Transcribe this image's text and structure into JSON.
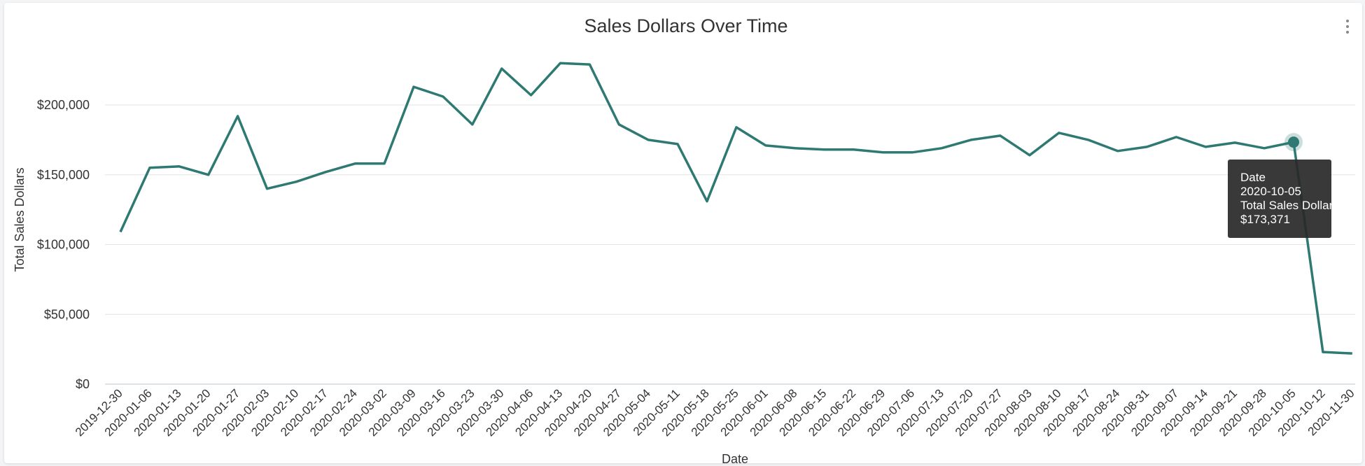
{
  "chart_data": {
    "type": "line",
    "title": "Sales Dollars Over Time",
    "xlabel": "Date",
    "ylabel": "Total Sales Dollars",
    "ylim": [
      0,
      200000
    ],
    "yticks": [
      "$0",
      "$50,000",
      "$100,000",
      "$150,000",
      "$200,000"
    ],
    "ytick_values": [
      0,
      50000,
      100000,
      150000,
      200000
    ],
    "grid": true,
    "line_color": "#2e7a72",
    "categories": [
      "2019-12-30",
      "2020-01-06",
      "2020-01-13",
      "2020-01-20",
      "2020-01-27",
      "2020-02-03",
      "2020-02-10",
      "2020-02-17",
      "2020-02-24",
      "2020-03-02",
      "2020-03-09",
      "2020-03-16",
      "2020-03-23",
      "2020-03-30",
      "2020-04-06",
      "2020-04-13",
      "2020-04-20",
      "2020-04-27",
      "2020-05-04",
      "2020-05-11",
      "2020-05-18",
      "2020-05-25",
      "2020-06-01",
      "2020-06-08",
      "2020-06-15",
      "2020-06-22",
      "2020-06-29",
      "2020-07-06",
      "2020-07-13",
      "2020-07-20",
      "2020-07-27",
      "2020-08-03",
      "2020-08-10",
      "2020-08-17",
      "2020-08-24",
      "2020-08-31",
      "2020-09-07",
      "2020-09-14",
      "2020-09-21",
      "2020-09-28",
      "2020-10-05",
      "2020-10-12",
      "2020-11-30"
    ],
    "series": [
      {
        "values": [
          109000,
          155000,
          156000,
          150000,
          192000,
          140000,
          145000,
          152000,
          158000,
          158000,
          213000,
          206000,
          186000,
          226000,
          207000,
          230000,
          229000,
          186000,
          175000,
          172000,
          131000,
          184000,
          171000,
          169000,
          168000,
          168000,
          166000,
          166000,
          169000,
          175000,
          178000,
          164000,
          180000,
          175000,
          167000,
          170000,
          177000,
          170000,
          173000,
          169000,
          173371,
          23000,
          22000
        ]
      }
    ],
    "tooltip": {
      "x_label": "Date",
      "x_value": "2020-10-05",
      "y_label": "Total Sales Dollars",
      "y_value": "$173,371",
      "index": 40
    }
  }
}
